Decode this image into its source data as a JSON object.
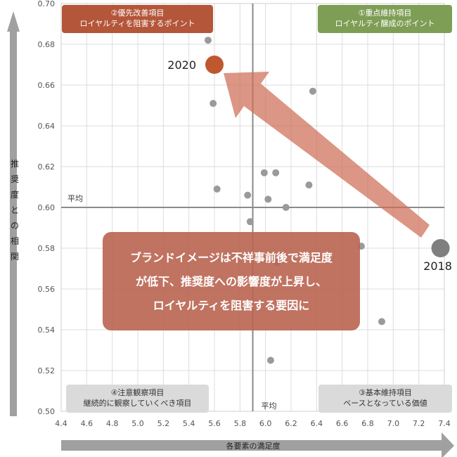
{
  "chart_data": {
    "type": "scatter",
    "title": "",
    "xlabel": "各要素の満足度",
    "ylabel": "推奨度との相関",
    "xlim": [
      4.4,
      7.4
    ],
    "ylim": [
      0.5,
      0.7
    ],
    "xticks": [
      "4.4",
      "4.6",
      "4.8",
      "5.0",
      "5.2",
      "5.4",
      "5.6",
      "5.8",
      "6.0",
      "6.2",
      "6.4",
      "6.6",
      "6.8",
      "7.0",
      "7.2",
      "7.4"
    ],
    "yticks": [
      "0.50",
      "0.52",
      "0.54",
      "0.56",
      "0.58",
      "0.60",
      "0.62",
      "0.64",
      "0.66",
      "0.68",
      "0.70"
    ],
    "avg_x": 5.9,
    "avg_y": 0.6,
    "avg_label": "平均",
    "grid": true,
    "series": [
      {
        "points": [
          [
            5.55,
            0.682
          ],
          [
            5.59,
            0.651
          ],
          [
            6.37,
            0.657
          ],
          [
            5.62,
            0.609
          ],
          [
            5.99,
            0.617
          ],
          [
            6.08,
            0.617
          ],
          [
            5.86,
            0.606
          ],
          [
            6.34,
            0.611
          ],
          [
            6.02,
            0.604
          ],
          [
            6.16,
            0.6
          ],
          [
            5.88,
            0.593
          ],
          [
            6.75,
            0.581
          ],
          [
            6.09,
            0.573
          ],
          [
            6.91,
            0.544
          ],
          [
            6.04,
            0.525
          ]
        ]
      },
      {
        "name": "2020",
        "points": [
          [
            5.6,
            0.67
          ]
        ],
        "color": "#C0582F"
      },
      {
        "name": "2018",
        "points": [
          [
            7.37,
            0.58
          ]
        ],
        "color": "#7F7F7F"
      }
    ],
    "quadrants": [
      {
        "line1": "②優先改善項目",
        "line2": "ロイヤルティを阻害するポイント",
        "color": "#B4563A"
      },
      {
        "line1": "①重点維持項目",
        "line2": "ロイヤルティ醸成のポイント",
        "color": "#7E9E55"
      },
      {
        "line1": "④注意観察項目",
        "line2": "継続的に観察していくべき項目",
        "color": "#DADADA"
      },
      {
        "line1": "③基本維持項目",
        "line2": "ベースとなっている価値",
        "color": "#DADADA"
      }
    ],
    "annotation": [
      "ブランドイメージは不祥事前後で満足度",
      "が低下、推奨度への影響度が上昇し、",
      "ロイヤルティを阻害する要因に"
    ]
  }
}
